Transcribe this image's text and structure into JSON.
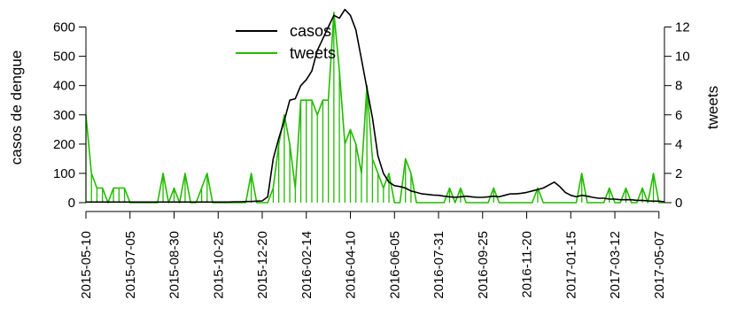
{
  "chart_data": {
    "type": "line",
    "ylabel": "casos de dengue",
    "y2label": "tweets",
    "ylim": [
      0,
      650
    ],
    "y2lim": [
      0,
      13
    ],
    "yticks": [
      0,
      100,
      200,
      300,
      400,
      500,
      600
    ],
    "y2ticks": [
      0,
      2,
      4,
      6,
      8,
      10,
      12
    ],
    "xlim": [
      "2015-05-10",
      "2017-05-14"
    ],
    "xticks": [
      "2015-05-10",
      "2015-07-05",
      "2015-08-30",
      "2015-10-25",
      "2015-12-20",
      "2016-02-14",
      "2016-04-10",
      "2016-06-05",
      "2016-07-31",
      "2016-09-25",
      "2016-11-20",
      "2017-01-15",
      "2017-03-12",
      "2017-05-07"
    ],
    "legend_position": "top-center",
    "grid": false,
    "series": [
      {
        "name": "casos",
        "axis": "left",
        "style": "line",
        "color": "#000000",
        "x": [
          "2015-05-10",
          "2015-05-17",
          "2015-05-24",
          "2015-05-31",
          "2015-06-07",
          "2015-06-14",
          "2015-06-21",
          "2015-06-28",
          "2015-07-05",
          "2015-07-12",
          "2015-07-19",
          "2015-07-26",
          "2015-08-02",
          "2015-08-09",
          "2015-08-16",
          "2015-08-23",
          "2015-08-30",
          "2015-09-06",
          "2015-09-13",
          "2015-09-20",
          "2015-09-27",
          "2015-10-04",
          "2015-10-11",
          "2015-10-18",
          "2015-10-25",
          "2015-11-01",
          "2015-11-08",
          "2015-11-15",
          "2015-11-22",
          "2015-11-29",
          "2015-12-06",
          "2015-12-13",
          "2015-12-20",
          "2015-12-27",
          "2016-01-03",
          "2016-01-10",
          "2016-01-17",
          "2016-01-24",
          "2016-01-31",
          "2016-02-07",
          "2016-02-14",
          "2016-02-21",
          "2016-02-28",
          "2016-03-06",
          "2016-03-13",
          "2016-03-20",
          "2016-03-27",
          "2016-04-03",
          "2016-04-10",
          "2016-04-17",
          "2016-04-24",
          "2016-05-01",
          "2016-05-08",
          "2016-05-15",
          "2016-05-22",
          "2016-05-29",
          "2016-06-05",
          "2016-06-12",
          "2016-06-19",
          "2016-06-26",
          "2016-07-03",
          "2016-07-10",
          "2016-07-17",
          "2016-07-24",
          "2016-07-31",
          "2016-08-07",
          "2016-08-14",
          "2016-08-21",
          "2016-08-28",
          "2016-09-04",
          "2016-09-11",
          "2016-09-18",
          "2016-09-25",
          "2016-10-02",
          "2016-10-09",
          "2016-10-16",
          "2016-10-23",
          "2016-10-30",
          "2016-11-06",
          "2016-11-13",
          "2016-11-20",
          "2016-11-27",
          "2016-12-04",
          "2016-12-11",
          "2016-12-18",
          "2016-12-25",
          "2017-01-01",
          "2017-01-08",
          "2017-01-15",
          "2017-01-22",
          "2017-01-29",
          "2017-02-05",
          "2017-02-12",
          "2017-02-19",
          "2017-02-26",
          "2017-03-05",
          "2017-03-12",
          "2017-03-19",
          "2017-03-26",
          "2017-04-02",
          "2017-04-09",
          "2017-04-16",
          "2017-04-23",
          "2017-04-30",
          "2017-05-07",
          "2017-05-14"
        ],
        "values": [
          2,
          2,
          2,
          2,
          2,
          2,
          2,
          2,
          2,
          2,
          2,
          2,
          2,
          2,
          2,
          2,
          2,
          2,
          2,
          2,
          2,
          2,
          2,
          2,
          2,
          2,
          2,
          3,
          3,
          4,
          4,
          5,
          6,
          20,
          150,
          220,
          280,
          350,
          355,
          400,
          420,
          450,
          520,
          560,
          600,
          640,
          630,
          660,
          640,
          590,
          490,
          390,
          290,
          160,
          100,
          70,
          58,
          55,
          50,
          40,
          35,
          30,
          28,
          26,
          25,
          22,
          20,
          18,
          20,
          22,
          20,
          18,
          18,
          20,
          22,
          20,
          25,
          30,
          30,
          32,
          35,
          40,
          45,
          50,
          60,
          70,
          55,
          35,
          25,
          20,
          25,
          22,
          18,
          15,
          15,
          12,
          12,
          10,
          10,
          10,
          8,
          8,
          6,
          5,
          5,
          3
        ]
      },
      {
        "name": "tweets",
        "axis": "right",
        "style": "spikes",
        "color": "#22bb00",
        "x": [
          "2015-05-10",
          "2015-05-17",
          "2015-05-24",
          "2015-05-31",
          "2015-06-07",
          "2015-06-14",
          "2015-06-21",
          "2015-06-28",
          "2015-07-05",
          "2015-07-12",
          "2015-07-19",
          "2015-07-26",
          "2015-08-02",
          "2015-08-09",
          "2015-08-16",
          "2015-08-23",
          "2015-08-30",
          "2015-09-06",
          "2015-09-13",
          "2015-09-20",
          "2015-09-27",
          "2015-10-04",
          "2015-10-11",
          "2015-10-18",
          "2015-10-25",
          "2015-11-01",
          "2015-11-08",
          "2015-11-15",
          "2015-11-22",
          "2015-11-29",
          "2015-12-06",
          "2015-12-13",
          "2015-12-20",
          "2015-12-27",
          "2016-01-03",
          "2016-01-10",
          "2016-01-17",
          "2016-01-24",
          "2016-01-31",
          "2016-02-07",
          "2016-02-14",
          "2016-02-21",
          "2016-02-28",
          "2016-03-06",
          "2016-03-13",
          "2016-03-20",
          "2016-03-27",
          "2016-04-03",
          "2016-04-10",
          "2016-04-17",
          "2016-04-24",
          "2016-05-01",
          "2016-05-08",
          "2016-05-15",
          "2016-05-22",
          "2016-05-29",
          "2016-06-05",
          "2016-06-12",
          "2016-06-19",
          "2016-06-26",
          "2016-07-03",
          "2016-07-10",
          "2016-07-17",
          "2016-07-24",
          "2016-07-31",
          "2016-08-07",
          "2016-08-14",
          "2016-08-21",
          "2016-08-28",
          "2016-09-04",
          "2016-09-11",
          "2016-09-18",
          "2016-09-25",
          "2016-10-02",
          "2016-10-09",
          "2016-10-16",
          "2016-10-23",
          "2016-10-30",
          "2016-11-06",
          "2016-11-13",
          "2016-11-20",
          "2016-11-27",
          "2016-12-04",
          "2016-12-11",
          "2016-12-18",
          "2016-12-25",
          "2017-01-01",
          "2017-01-08",
          "2017-01-15",
          "2017-01-22",
          "2017-01-29",
          "2017-02-05",
          "2017-02-12",
          "2017-02-19",
          "2017-02-26",
          "2017-03-05",
          "2017-03-12",
          "2017-03-19",
          "2017-03-26",
          "2017-04-02",
          "2017-04-09",
          "2017-04-16",
          "2017-04-23",
          "2017-04-30",
          "2017-05-07",
          "2017-05-14"
        ],
        "values": [
          6,
          2,
          1,
          1,
          0,
          1,
          1,
          1,
          0,
          0,
          0,
          0,
          0,
          0,
          2,
          0,
          1,
          0,
          2,
          0,
          0,
          1,
          2,
          0,
          0,
          0,
          0,
          0,
          0,
          0,
          2,
          0,
          0,
          0,
          1,
          4,
          6,
          4,
          1,
          7,
          7,
          7,
          6,
          7,
          7,
          13,
          9,
          4,
          5,
          4,
          2,
          8,
          3,
          2,
          1,
          2,
          0,
          0,
          3,
          2,
          0,
          0,
          0,
          0,
          0,
          0,
          1,
          0,
          1,
          0,
          0,
          0,
          0,
          0,
          1,
          0,
          0,
          0,
          0,
          0,
          0,
          0,
          1,
          0,
          0,
          0,
          0,
          0,
          0,
          0,
          2,
          0,
          0,
          0,
          0,
          1,
          0,
          0,
          1,
          0,
          0,
          1,
          0,
          2,
          0,
          0
        ]
      }
    ]
  }
}
